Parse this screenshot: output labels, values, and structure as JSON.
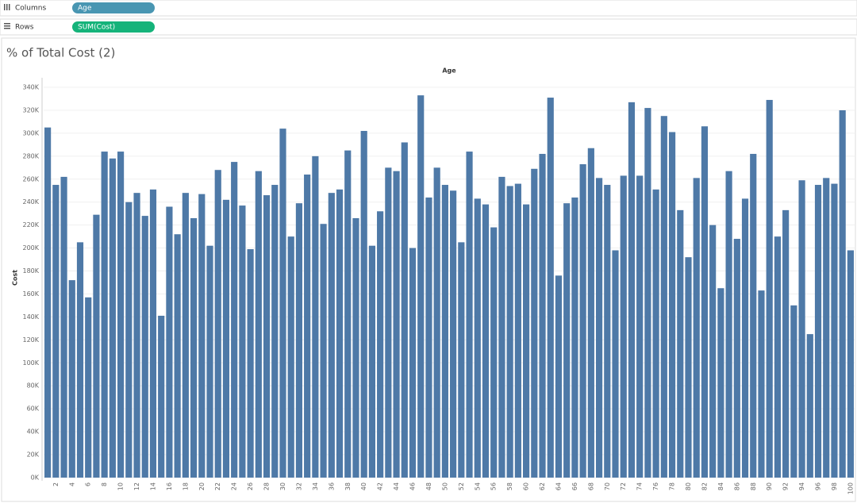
{
  "shelves": {
    "columns": {
      "label": "Columns",
      "pill": "Age"
    },
    "rows": {
      "label": "Rows",
      "pill": "SUM(Cost)"
    }
  },
  "chart_data": {
    "type": "bar",
    "title": "% of Total Cost (2)",
    "column_header": "Age",
    "y_label": "Cost",
    "color": "#4e79a7",
    "grid": true,
    "categories": [
      null,
      "2",
      null,
      "4",
      null,
      "6",
      null,
      "8",
      null,
      "10",
      null,
      "12",
      null,
      "14",
      null,
      "16",
      null,
      "18",
      null,
      "20",
      null,
      "22",
      null,
      "24",
      null,
      "26",
      null,
      "28",
      null,
      "30",
      null,
      "32",
      null,
      "34",
      null,
      "36",
      null,
      "38",
      null,
      "40",
      null,
      "42",
      null,
      "44",
      null,
      "46",
      null,
      "48",
      null,
      "50",
      null,
      "52",
      null,
      "54",
      null,
      "56",
      null,
      "58",
      null,
      "60",
      null,
      "62",
      null,
      "64",
      null,
      "66",
      null,
      "68",
      null,
      "70",
      null,
      "72",
      null,
      "74",
      null,
      "76",
      null,
      "78",
      null,
      "80",
      null,
      "82",
      null,
      "84",
      null,
      "86",
      null,
      "88",
      null,
      "90",
      null,
      "92",
      null,
      "94",
      null,
      "96",
      null,
      "98",
      null,
      "100"
    ],
    "values": [
      305000,
      255000,
      262000,
      172000,
      205000,
      157000,
      229000,
      284000,
      278000,
      284000,
      240000,
      248000,
      228000,
      251000,
      141000,
      236000,
      212000,
      248000,
      226000,
      247000,
      202000,
      268000,
      242000,
      275000,
      237000,
      199000,
      267000,
      246000,
      255000,
      304000,
      210000,
      239000,
      264000,
      280000,
      221000,
      248000,
      251000,
      285000,
      226000,
      302000,
      202000,
      232000,
      270000,
      267000,
      292000,
      200000,
      333000,
      244000,
      270000,
      255000,
      250000,
      205000,
      284000,
      243000,
      238000,
      218000,
      262000,
      254000,
      256000,
      238000,
      269000,
      282000,
      331000,
      176000,
      239000,
      244000,
      273000,
      287000,
      261000,
      255000,
      198000,
      263000,
      327000,
      263000,
      322000,
      251000,
      315000,
      301000,
      233000,
      192000,
      261000,
      306000,
      220000,
      165000,
      267000,
      208000,
      243000,
      282000,
      163000,
      329000,
      210000,
      233000,
      150000,
      259000,
      125000,
      255000,
      261000,
      256000,
      320000,
      198000
    ],
    "ylim": [
      0,
      345000
    ],
    "yticks": [
      {
        "value": 0,
        "label": "0K"
      },
      {
        "value": 20000,
        "label": "20K"
      },
      {
        "value": 40000,
        "label": "40K"
      },
      {
        "value": 60000,
        "label": "60K"
      },
      {
        "value": 80000,
        "label": "80K"
      },
      {
        "value": 100000,
        "label": "100K"
      },
      {
        "value": 120000,
        "label": "120K"
      },
      {
        "value": 140000,
        "label": "140K"
      },
      {
        "value": 160000,
        "label": "160K"
      },
      {
        "value": 180000,
        "label": "180K"
      },
      {
        "value": 200000,
        "label": "200K"
      },
      {
        "value": 220000,
        "label": "220K"
      },
      {
        "value": 240000,
        "label": "240K"
      },
      {
        "value": 260000,
        "label": "260K"
      },
      {
        "value": 280000,
        "label": "280K"
      },
      {
        "value": 300000,
        "label": "300K"
      },
      {
        "value": 320000,
        "label": "320K"
      },
      {
        "value": 340000,
        "label": "340K"
      }
    ]
  }
}
